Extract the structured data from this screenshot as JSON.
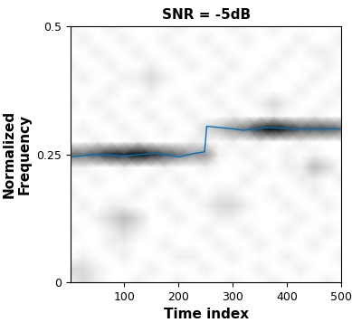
{
  "chart_data": {
    "type": "heatmap",
    "title": "SNR = -5dB",
    "x_label": "Time index",
    "y_label": "Normalized\nFrequency",
    "xlim": [
      1,
      500
    ],
    "xticks": [
      100,
      200,
      300,
      400,
      500
    ],
    "ylim": [
      0,
      0.5
    ],
    "yticks": [
      0,
      0.25,
      0.5
    ],
    "grid": false,
    "x": [
      0,
      25,
      50,
      75,
      100,
      125,
      150,
      175,
      200,
      225,
      250,
      275,
      300,
      325,
      350,
      375,
      400,
      425,
      450,
      475,
      500
    ],
    "y": [
      0,
      0.025,
      0.05,
      0.075,
      0.1,
      0.125,
      0.15,
      0.175,
      0.2,
      0.225,
      0.25,
      0.275,
      0.3,
      0.325,
      0.35,
      0.375,
      0.4,
      0.425,
      0.45,
      0.475,
      0.5
    ],
    "cells": [
      [
        2,
        3,
        2,
        1,
        1,
        2,
        1,
        1,
        2,
        1,
        1,
        1,
        2,
        1,
        1,
        2,
        1,
        1,
        1,
        2,
        1
      ],
      [
        3,
        3,
        2,
        1,
        1,
        1,
        2,
        1,
        1,
        1,
        2,
        1,
        1,
        1,
        2,
        1,
        1,
        2,
        1,
        1,
        1
      ],
      [
        1,
        2,
        1,
        1,
        2,
        1,
        1,
        1,
        2,
        2,
        1,
        1,
        2,
        1,
        1,
        1,
        2,
        1,
        1,
        1,
        2
      ],
      [
        1,
        1,
        1,
        2,
        2,
        1,
        1,
        2,
        1,
        1,
        1,
        2,
        1,
        1,
        2,
        1,
        1,
        1,
        2,
        1,
        1
      ],
      [
        2,
        1,
        1,
        2,
        3,
        2,
        1,
        1,
        1,
        1,
        2,
        1,
        1,
        2,
        1,
        1,
        2,
        1,
        1,
        2,
        1
      ],
      [
        1,
        1,
        2,
        3,
        4,
        3,
        1,
        1,
        2,
        1,
        1,
        2,
        2,
        1,
        1,
        1,
        1,
        2,
        1,
        1,
        1
      ],
      [
        1,
        2,
        1,
        2,
        2,
        1,
        1,
        2,
        1,
        1,
        2,
        3,
        3,
        2,
        1,
        1,
        2,
        1,
        1,
        2,
        1
      ],
      [
        2,
        1,
        1,
        1,
        1,
        2,
        1,
        1,
        1,
        2,
        1,
        2,
        2,
        1,
        1,
        2,
        1,
        1,
        2,
        1,
        1
      ],
      [
        1,
        1,
        2,
        1,
        1,
        1,
        2,
        1,
        2,
        1,
        1,
        1,
        1,
        2,
        1,
        1,
        1,
        2,
        2,
        1,
        2
      ],
      [
        2,
        2,
        1,
        1,
        2,
        1,
        1,
        2,
        1,
        1,
        2,
        1,
        1,
        1,
        2,
        1,
        2,
        2,
        4,
        3,
        1
      ],
      [
        6,
        6,
        7,
        8,
        8,
        9,
        8,
        7,
        6,
        5,
        5,
        2,
        1,
        2,
        1,
        1,
        2,
        1,
        2,
        1,
        1
      ],
      [
        1,
        1,
        2,
        1,
        1,
        2,
        1,
        1,
        1,
        2,
        2,
        1,
        2,
        1,
        2,
        1,
        1,
        2,
        1,
        1,
        1
      ],
      [
        1,
        2,
        1,
        1,
        2,
        1,
        1,
        2,
        1,
        1,
        3,
        4,
        5,
        6,
        8,
        9,
        8,
        7,
        7,
        7,
        6
      ],
      [
        1,
        1,
        1,
        2,
        1,
        1,
        2,
        1,
        1,
        2,
        1,
        1,
        2,
        1,
        1,
        2,
        1,
        1,
        2,
        1,
        1
      ],
      [
        2,
        1,
        2,
        1,
        1,
        2,
        1,
        1,
        2,
        1,
        1,
        2,
        1,
        1,
        2,
        3,
        2,
        1,
        1,
        2,
        1
      ],
      [
        1,
        1,
        1,
        2,
        1,
        1,
        2,
        1,
        1,
        1,
        2,
        1,
        1,
        2,
        1,
        1,
        1,
        2,
        1,
        1,
        2
      ],
      [
        1,
        2,
        1,
        1,
        2,
        2,
        3,
        2,
        1,
        1,
        1,
        2,
        1,
        1,
        2,
        1,
        1,
        1,
        2,
        1,
        1
      ],
      [
        2,
        1,
        1,
        2,
        1,
        1,
        2,
        1,
        1,
        2,
        1,
        1,
        2,
        1,
        1,
        2,
        1,
        1,
        1,
        2,
        1
      ],
      [
        1,
        1,
        2,
        1,
        1,
        2,
        1,
        1,
        2,
        1,
        1,
        2,
        1,
        1,
        1,
        1,
        2,
        1,
        2,
        2,
        1
      ],
      [
        1,
        2,
        1,
        1,
        2,
        1,
        1,
        2,
        1,
        1,
        2,
        1,
        1,
        2,
        1,
        1,
        1,
        2,
        1,
        1,
        2
      ],
      [
        2,
        1,
        1,
        2,
        1,
        1,
        1,
        1,
        2,
        1,
        1,
        1,
        2,
        1,
        1,
        2,
        1,
        1,
        1,
        1,
        1
      ]
    ],
    "series": [
      {
        "type": "line",
        "color": "#0072bd",
        "x": [
          1,
          50,
          100,
          130,
          160,
          200,
          230,
          248,
          252,
          300,
          320,
          360,
          420,
          500
        ],
        "values": [
          0.245,
          0.25,
          0.247,
          0.25,
          0.252,
          0.245,
          0.252,
          0.255,
          0.305,
          0.3,
          0.297,
          0.302,
          0.3,
          0.3
        ]
      }
    ]
  }
}
